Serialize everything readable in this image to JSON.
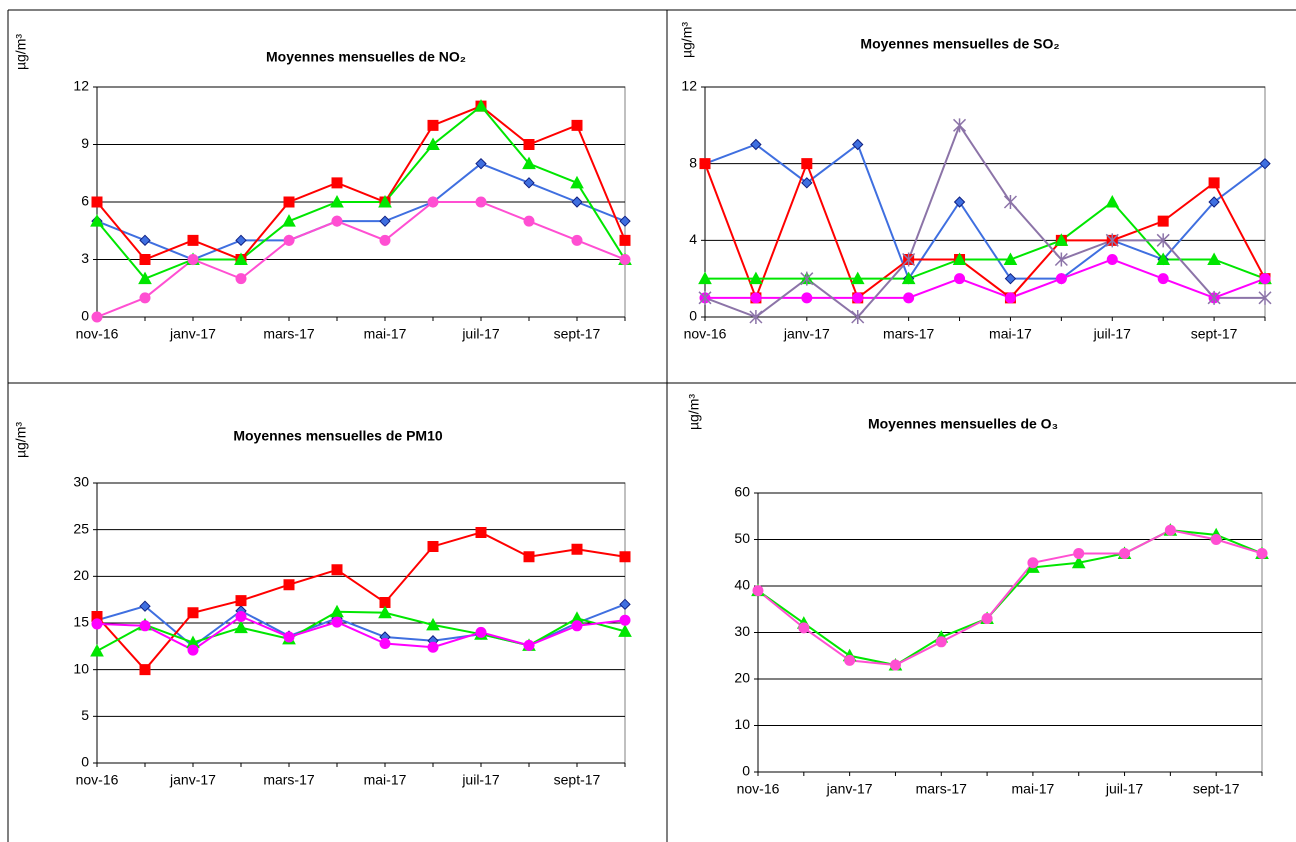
{
  "chart_data": [
    {
      "type": "line",
      "title": "Moyennes mensuelles de NO₂",
      "y_label": "µg/m³",
      "categories": [
        "nov-16",
        null,
        "janv-17",
        null,
        "mars-17",
        null,
        "mai-17",
        null,
        "juil-17",
        null,
        "sept-17",
        null
      ],
      "ylim": [
        0,
        12
      ],
      "yticks": [
        0,
        3,
        6,
        9,
        12
      ],
      "grid": true,
      "series": [
        {
          "color": "#3f6fe0",
          "marker": "diamond",
          "values": [
            5,
            4,
            3,
            4,
            4,
            5,
            5,
            6,
            8,
            7,
            6,
            5
          ]
        },
        {
          "color": "#ff0000",
          "marker": "square",
          "values": [
            6,
            3,
            4,
            3,
            6,
            7,
            6,
            10,
            11,
            9,
            10,
            4
          ]
        },
        {
          "color": "#00e600",
          "marker": "triangle",
          "values": [
            5,
            2,
            3,
            3,
            5,
            6,
            6,
            9,
            11,
            8,
            7,
            3
          ]
        },
        {
          "color": "#ff4fd2",
          "marker": "circle",
          "values": [
            0,
            1,
            3,
            2,
            4,
            5,
            4,
            6,
            6,
            5,
            4,
            3
          ]
        }
      ]
    },
    {
      "type": "line",
      "title": "Moyennes mensuelles de SO₂",
      "y_label": "µg/m³",
      "categories": [
        "nov-16",
        null,
        "janv-17",
        null,
        "mars-17",
        null,
        "mai-17",
        null,
        "juil-17",
        null,
        "sept-17",
        null
      ],
      "ylim": [
        0,
        12
      ],
      "yticks": [
        0,
        4,
        8,
        12
      ],
      "grid": true,
      "series": [
        {
          "color": "#3f6fe0",
          "marker": "diamond",
          "values": [
            8,
            9,
            7,
            9,
            2,
            6,
            2,
            2,
            4,
            3,
            6,
            8
          ]
        },
        {
          "color": "#ff0000",
          "marker": "square",
          "values": [
            8,
            1,
            8,
            1,
            3,
            3,
            1,
            4,
            4,
            5,
            7,
            2
          ]
        },
        {
          "color": "#00e600",
          "marker": "triangle",
          "values": [
            2,
            2,
            2,
            2,
            2,
            3,
            3,
            4,
            6,
            3,
            3,
            2
          ]
        },
        {
          "color": "#ff00ff",
          "marker": "circle",
          "values": [
            1,
            1,
            1,
            1,
            1,
            2,
            1,
            2,
            3,
            2,
            1,
            2
          ]
        },
        {
          "color": "#8c74a8",
          "marker": "star",
          "values": [
            1,
            0,
            2,
            0,
            3,
            10,
            6,
            3,
            4,
            4,
            1,
            1
          ]
        }
      ]
    },
    {
      "type": "line",
      "title": "Moyennes mensuelles de PM10",
      "y_label": "µg/m³",
      "categories": [
        "nov-16",
        null,
        "janv-17",
        null,
        "mars-17",
        null,
        "mai-17",
        null,
        "juil-17",
        null,
        "sept-17",
        null
      ],
      "ylim": [
        0,
        30
      ],
      "yticks": [
        0,
        5,
        10,
        15,
        20,
        25,
        30
      ],
      "grid": true,
      "series": [
        {
          "color": "#3f6fe0",
          "marker": "diamond",
          "values": [
            15.3,
            16.8,
            12.5,
            16.3,
            13.6,
            15.5,
            13.5,
            13.1,
            13.8,
            12.6,
            15.0,
            17.0
          ]
        },
        {
          "color": "#ff0000",
          "marker": "square",
          "values": [
            15.7,
            10.0,
            16.1,
            17.4,
            19.1,
            20.7,
            17.2,
            23.2,
            24.7,
            22.1,
            22.9,
            22.1
          ]
        },
        {
          "color": "#00e600",
          "marker": "triangle",
          "values": [
            12.0,
            14.8,
            12.9,
            14.5,
            13.3,
            16.2,
            16.1,
            14.8,
            13.8,
            12.6,
            15.5,
            14.1
          ]
        },
        {
          "color": "#ff00ff",
          "marker": "circle",
          "values": [
            14.9,
            14.7,
            12.1,
            15.7,
            13.5,
            15.1,
            12.8,
            12.4,
            14.0,
            12.6,
            14.7,
            15.3
          ]
        }
      ]
    },
    {
      "type": "line",
      "title": "Moyennes mensuelles de O₃",
      "y_label": "µg/m³",
      "categories": [
        "nov-16",
        null,
        "janv-17",
        null,
        "mars-17",
        null,
        "mai-17",
        null,
        "juil-17",
        null,
        "sept-17",
        null
      ],
      "ylim": [
        0,
        60
      ],
      "yticks": [
        0,
        10,
        20,
        30,
        40,
        50,
        60
      ],
      "grid": true,
      "series": [
        {
          "color": "#00e600",
          "marker": "triangle",
          "values": [
            39,
            32,
            25,
            23,
            29,
            33,
            44,
            45,
            47,
            52,
            51,
            47
          ]
        },
        {
          "color": "#ff4fd2",
          "marker": "circle",
          "values": [
            39,
            31,
            24,
            23,
            28,
            33,
            45,
            47,
            47,
            52,
            50,
            47
          ]
        }
      ]
    }
  ]
}
